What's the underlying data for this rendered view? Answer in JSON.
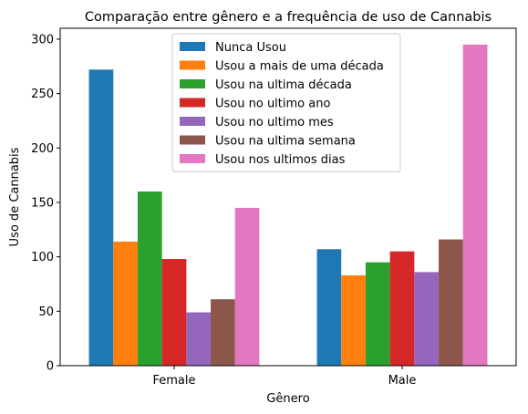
{
  "chart_data": {
    "type": "bar",
    "title": "Comparação entre gênero e a frequência de uso de Cannabis",
    "xlabel": "Gênero",
    "ylabel": "Uso de Cannabis",
    "categories": [
      "Female",
      "Male"
    ],
    "ylim": [
      0,
      310
    ],
    "yticks": [
      0,
      50,
      100,
      150,
      200,
      250,
      300
    ],
    "grid": false,
    "legend_position": "top-center",
    "series": [
      {
        "name": "Nunca Usou",
        "color": "#1f77b4",
        "values": [
          272,
          107
        ]
      },
      {
        "name": "Usou a mais de uma década",
        "color": "#ff7f0e",
        "values": [
          114,
          83
        ]
      },
      {
        "name": "Usou na ultima década",
        "color": "#2ca02c",
        "values": [
          160,
          95
        ]
      },
      {
        "name": "Usou no ultimo ano",
        "color": "#d62728",
        "values": [
          98,
          105
        ]
      },
      {
        "name": "Usou no ultimo mes",
        "color": "#9467bd",
        "values": [
          49,
          86
        ]
      },
      {
        "name": "Usou na ultima semana",
        "color": "#8c564b",
        "values": [
          61,
          116
        ]
      },
      {
        "name": "Usou nos ultimos dias",
        "color": "#e377c2",
        "values": [
          145,
          295
        ]
      }
    ]
  }
}
